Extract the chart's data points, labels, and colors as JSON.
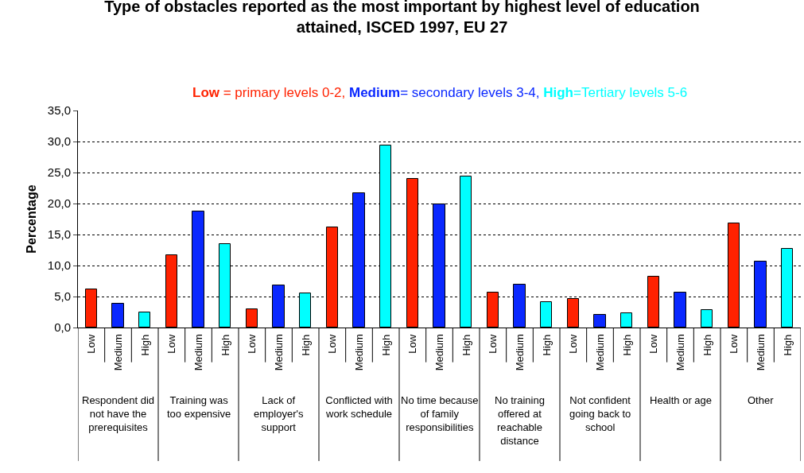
{
  "chart_data": {
    "type": "bar",
    "title": "Type of obstacles reported as the most important by highest level of education attained, ISCED 1997, EU 27",
    "ylabel": "Percentage",
    "annotations": [
      " = primary levels 0-2, ",
      "= secondary levels 3-4, ",
      "=Tertiary levels 5-6"
    ],
    "categories": [
      "Respondent did not have the prerequisites",
      "Training was too expensive",
      "Lack of employer's support",
      "Conflicted with work schedule",
      "No time because of family responsibilities",
      "No training offered at reachable distance",
      "Not confident going back to school",
      "Health or age",
      "Other"
    ],
    "series": [
      {
        "name": "Low",
        "color": "#ff2200",
        "values": [
          6.2,
          11.7,
          2.9,
          16.1,
          24.0,
          5.7,
          4.6,
          8.2,
          16.8
        ]
      },
      {
        "name": "Medium",
        "color": "#0a28ff",
        "values": [
          3.9,
          18.7,
          6.8,
          21.7,
          19.9,
          6.9,
          2.1,
          5.7,
          10.7
        ]
      },
      {
        "name": "High",
        "color": "#00ffff",
        "values": [
          2.5,
          13.5,
          5.5,
          29.4,
          24.3,
          4.1,
          2.3,
          2.8,
          12.7
        ]
      }
    ],
    "ylim": [
      0,
      35
    ],
    "yticks": [
      {
        "value": 0,
        "label": "0,0"
      },
      {
        "value": 5,
        "label": "5,0"
      },
      {
        "value": 10,
        "label": "10,0"
      },
      {
        "value": 15,
        "label": "15,0"
      },
      {
        "value": 20,
        "label": "20,0"
      },
      {
        "value": 25,
        "label": "25,0"
      },
      {
        "value": 30,
        "label": "30,0"
      },
      {
        "value": 35,
        "label": "35,0"
      }
    ],
    "grid": "y",
    "legend": false
  }
}
